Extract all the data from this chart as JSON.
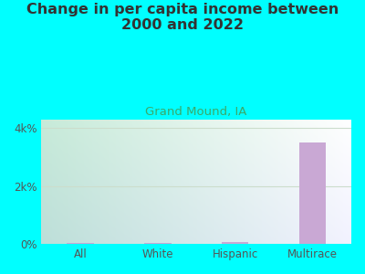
{
  "title": "Change in per capita income between\n2000 and 2022",
  "subtitle": "Grand Mound, IA",
  "categories": [
    "All",
    "White",
    "Hispanic",
    "Multirace"
  ],
  "values": [
    50,
    50,
    80,
    3500
  ],
  "bar_color": "#c9a8d4",
  "background_color": "#00FFFF",
  "plot_bg_left": "#c8ead8",
  "plot_bg_right": "#e8f8f0",
  "plot_bg_center": "#f5fff8",
  "title_fontsize": 11.5,
  "subtitle_fontsize": 9.5,
  "subtitle_color": "#3aaa6a",
  "ylabel_ticks": [
    "0%",
    "2k%",
    "4k%"
  ],
  "ytick_values": [
    0,
    2000,
    4000
  ],
  "ylim": [
    0,
    4300
  ],
  "tick_color": "#555555",
  "axis_label_color": "#555555",
  "grid_color": "#ccddcc"
}
